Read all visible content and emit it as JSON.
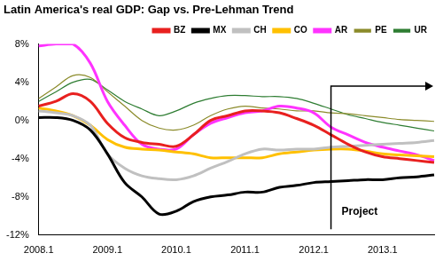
{
  "chart_data": {
    "type": "line",
    "title": "Latin America's real GDP: Gap vs. Pre-Lehman Trend",
    "categories": [
      "2008.1",
      null,
      null,
      null,
      "2009.1",
      null,
      null,
      null,
      "2010.1",
      null,
      null,
      null,
      "2011.1",
      null,
      null,
      null,
      "2012.1",
      null,
      null,
      null,
      "2013.1",
      null,
      null,
      null
    ],
    "series": [
      {
        "name": "BZ",
        "color": "#e8201f",
        "line_style": "thick",
        "values": [
          1.5,
          2.0,
          2.8,
          2.0,
          -0.3,
          -1.8,
          -2.3,
          -2.5,
          -2.7,
          -1.5,
          0,
          0.5,
          1.0,
          1.0,
          0.8,
          0.2,
          -0.5,
          -1.5,
          -2.5,
          -3.3,
          -3.8,
          -4.0,
          -4.2,
          -4.4
        ]
      },
      {
        "name": "MX",
        "color": "#000000",
        "line_style": "thick",
        "values": [
          0.3,
          0.3,
          0,
          -1.0,
          -3.5,
          -6.5,
          -8.0,
          -9.8,
          -9.5,
          -8.5,
          -8.0,
          -7.8,
          -7.5,
          -7.5,
          -7.0,
          -6.8,
          -6.5,
          -6.4,
          -6.3,
          -6.2,
          -6.2,
          -6.0,
          -5.9,
          -5.7
        ]
      },
      {
        "name": "CH",
        "color": "#c0c0c0",
        "line_style": "thick",
        "values": [
          1.0,
          0.8,
          0.5,
          -0.5,
          -3.5,
          -5.0,
          -5.8,
          -6.1,
          -6.2,
          -5.8,
          -5.0,
          -4.3,
          -3.5,
          -3.0,
          -3.1,
          -3.0,
          -3.0,
          -2.8,
          -2.7,
          -2.6,
          -2.5,
          -2.4,
          -2.3,
          -2.1
        ]
      },
      {
        "name": "CO",
        "color": "#ffc000",
        "line_style": "thick",
        "values": [
          1.3,
          1.0,
          0.5,
          -0.5,
          -2.0,
          -2.8,
          -3.0,
          -3.1,
          -3.3,
          -3.5,
          -3.9,
          -3.9,
          -3.9,
          -3.9,
          -3.5,
          -3.3,
          -3.1,
          -3.0,
          -3.0,
          -3.2,
          -3.5,
          -3.6,
          -3.7,
          -3.8
        ]
      },
      {
        "name": "AR",
        "color": "#ff33ff",
        "line_style": "thick",
        "values": [
          7.8,
          8.0,
          8.0,
          6.0,
          2.0,
          -0.5,
          -2.5,
          -3.0,
          -3.0,
          -1.5,
          -0.3,
          0.3,
          0.8,
          1.0,
          1.5,
          1.3,
          0.8,
          -0.7,
          -1.5,
          -2.3,
          -2.8,
          -3.2,
          -3.6,
          -4.2
        ]
      },
      {
        "name": "PE",
        "color": "#8b8b2a",
        "line_style": "thin",
        "values": [
          2.3,
          3.5,
          4.7,
          4.5,
          3.0,
          1.5,
          0,
          -0.8,
          -1.0,
          -0.5,
          0.5,
          1.2,
          1.5,
          1.3,
          1.2,
          1.0,
          1.0,
          0.8,
          0.7,
          0.5,
          0.3,
          0.1,
          0,
          -0.1
        ]
      },
      {
        "name": "UR",
        "color": "#2e7d32",
        "line_style": "thin",
        "values": [
          2.0,
          3.0,
          4.0,
          4.3,
          3.2,
          2.0,
          1.2,
          0.5,
          1.0,
          1.8,
          2.3,
          2.6,
          2.6,
          2.5,
          2.5,
          2.3,
          1.8,
          1.2,
          0.6,
          0.2,
          -0.2,
          -0.5,
          -0.8,
          -1.1
        ]
      }
    ],
    "ylim": [
      -12,
      8
    ],
    "yticks": [
      {
        "value": -12,
        "label": "-12%"
      },
      {
        "value": -8,
        "label": "-8%"
      },
      {
        "value": -4,
        "label": "-4%"
      },
      {
        "value": 0,
        "label": "0%"
      },
      {
        "value": 4,
        "label": "4%"
      },
      {
        "value": 8,
        "label": "8%"
      }
    ],
    "grid": false,
    "legend": "top",
    "annotation": {
      "text": "Project",
      "x": 17
    }
  }
}
